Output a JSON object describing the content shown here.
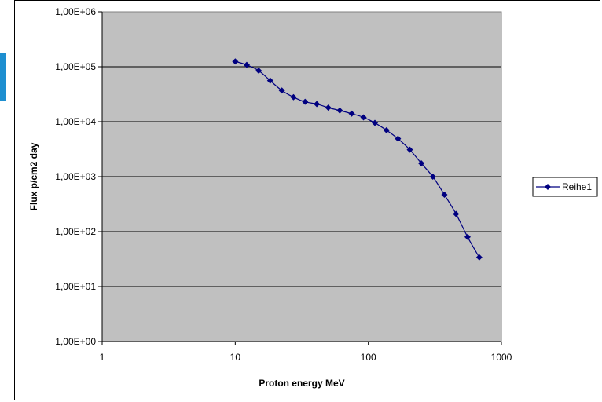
{
  "colors": {
    "plot_area": "#c0c0c0",
    "series": "#000080",
    "gridline": "#000000",
    "accent_bar": "#1e8fd0"
  },
  "chart_data": {
    "type": "scatter",
    "xlabel": "Proton energy MeV",
    "ylabel": "Flux p/cm2 day",
    "xscale": "log",
    "yscale": "log",
    "xlim": [
      1,
      1000
    ],
    "ylim": [
      1,
      1000000
    ],
    "x_ticks": [
      "1",
      "10",
      "100",
      "1000"
    ],
    "y_ticks": [
      "1,00E+00",
      "1,00E+01",
      "1,00E+02",
      "1,00E+03",
      "1,00E+04",
      "1,00E+05",
      "1,00E+06"
    ],
    "grid": "horizontal major gridlines",
    "legend": "right",
    "series": [
      {
        "name": "Reihe1",
        "marker": "diamond",
        "line": "smoothed",
        "x": [
          10,
          12.2,
          15,
          18.3,
          22.4,
          27.4,
          33.5,
          41,
          50,
          61,
          75,
          92,
          112,
          137,
          167,
          205,
          250,
          305,
          373,
          456,
          557,
          682
        ],
        "y": [
          125000,
          108000,
          85000,
          56000,
          37000,
          28000,
          23000,
          21000,
          18000,
          16000,
          14000,
          12000,
          9500,
          7000,
          4900,
          3100,
          1750,
          1000,
          470,
          210,
          80,
          34
        ]
      }
    ]
  }
}
